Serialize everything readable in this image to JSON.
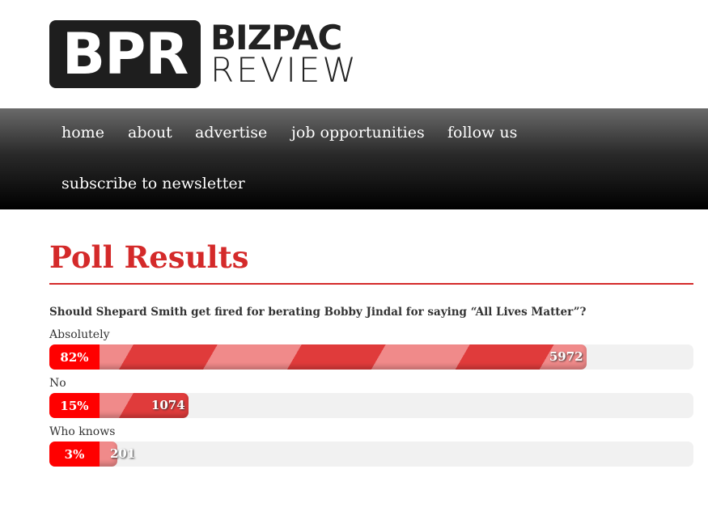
{
  "logo": {
    "mark": "BPR",
    "line1": "BIZPAC",
    "line2": "REVIEW"
  },
  "nav": [
    "home",
    "about",
    "advertise",
    "job opportunities",
    "follow us",
    "subscribe to newsletter"
  ],
  "title": "Poll Results",
  "question": "Should Shepard Smith get fired for berating Bobby Jindal for saying “All Lives Matter”?",
  "options": [
    {
      "label": "Absolutely",
      "percent": "82%",
      "votes": "5972",
      "fraction": 0.834
    },
    {
      "label": "No",
      "percent": "15%",
      "votes": "1074",
      "fraction": 0.216
    },
    {
      "label": "Who knows",
      "percent": "3%",
      "votes": "201",
      "fraction": 0.105
    }
  ],
  "colors": {
    "accent": "#d42a2a",
    "percent_box": "#ff0000"
  }
}
